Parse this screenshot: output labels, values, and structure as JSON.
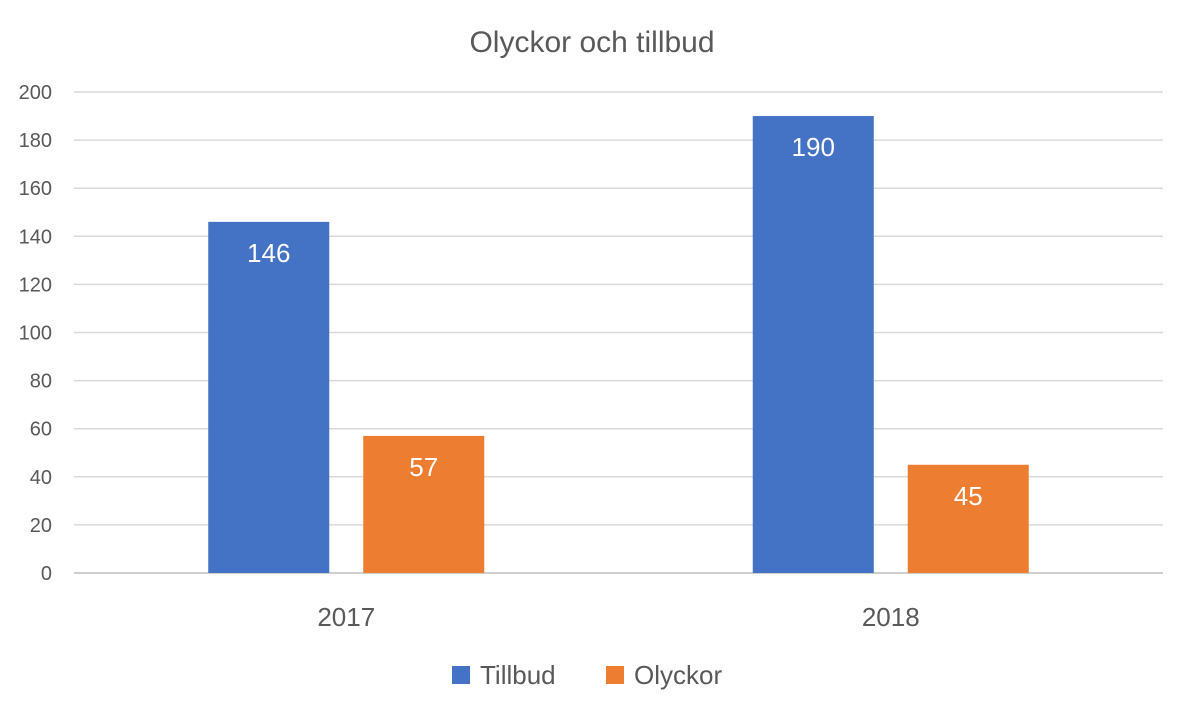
{
  "chart_data": {
    "type": "bar",
    "title": "Olyckor och tillbud",
    "categories": [
      "2017",
      "2018"
    ],
    "series": [
      {
        "name": "Tillbud",
        "values": [
          146,
          190
        ],
        "color": "#4472C4"
      },
      {
        "name": "Olyckor",
        "values": [
          57,
          45
        ],
        "color": "#ED7D31"
      }
    ],
    "ylim": [
      0,
      200
    ],
    "yticks": [
      0,
      20,
      40,
      60,
      80,
      100,
      120,
      140,
      160,
      180,
      200
    ],
    "grid": true,
    "legend": "bottom-center",
    "xlabel": "",
    "ylabel": ""
  }
}
